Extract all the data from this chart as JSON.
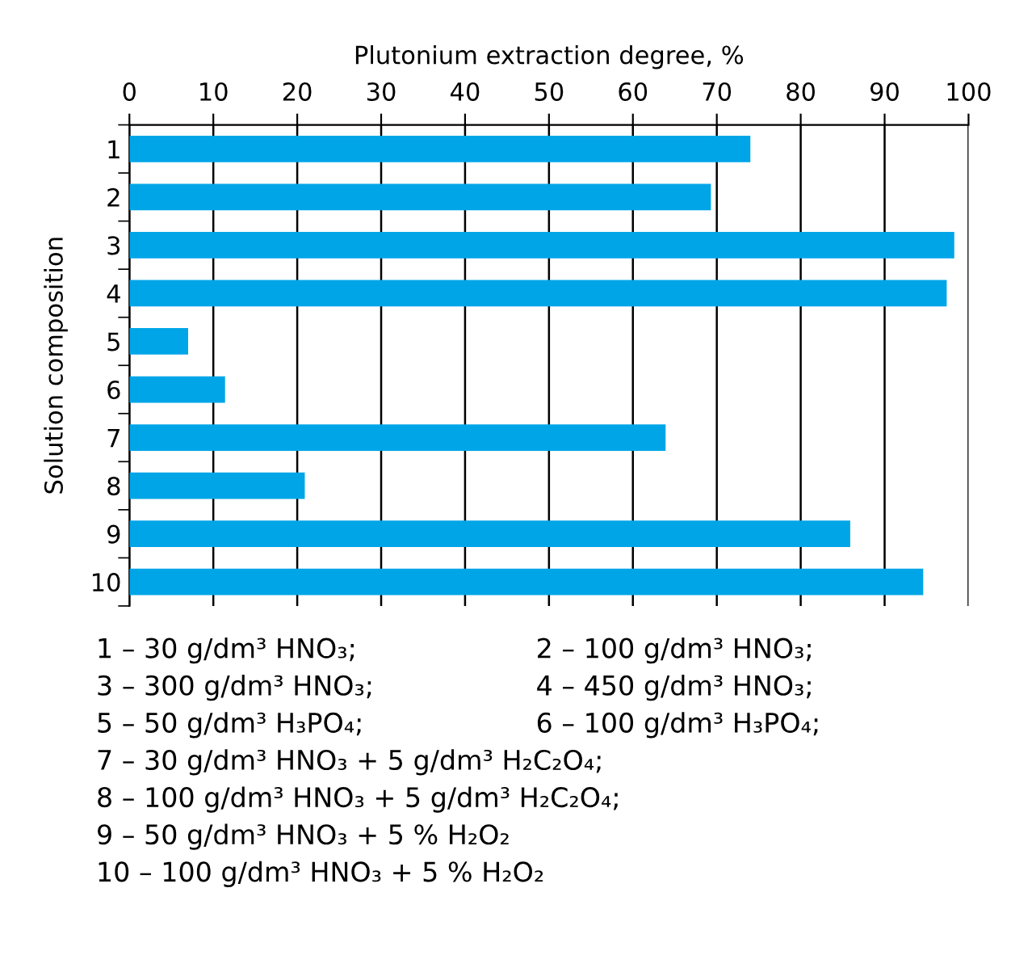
{
  "chart_data": {
    "type": "bar",
    "orientation": "horizontal",
    "xlabel": "Plutonium extraction degree, %",
    "ylabel": "Solution composition",
    "categories": [
      "1",
      "2",
      "3",
      "4",
      "5",
      "6",
      "7",
      "8",
      "9",
      "10"
    ],
    "values": [
      74.0,
      69.3,
      98.3,
      97.4,
      7.0,
      11.4,
      63.9,
      20.9,
      85.9,
      94.6
    ],
    "color": "#00a5e8",
    "xlim": [
      0,
      100
    ],
    "xticks": [
      0,
      10,
      20,
      30,
      40,
      50,
      60,
      70,
      80,
      90,
      100
    ],
    "grid": "x",
    "annotations": [
      "1 – 30 g/dm³ HNO₃;",
      "2 – 100 g/dm³ HNO₃;",
      "3 – 300 g/dm³ HNO₃;",
      "4 – 450 g/dm³ HNO₃;",
      "5 – 50 g/dm³ H₃PO₄;",
      "6 – 100 g/dm³ H₃PO₄;",
      "7 – 30 g/dm³ HNO₃ + 5 g/dm³ H₂C₂O₄;",
      "8 – 100 g/dm³ HNO₃ + 5 g/dm³ H₂C₂O₄;",
      "9 – 50 g/dm³ HNO₃ + 5 % H₂O₂",
      "10 – 100 g/dm³ HNO₃ + 5 % H₂O₂"
    ]
  }
}
